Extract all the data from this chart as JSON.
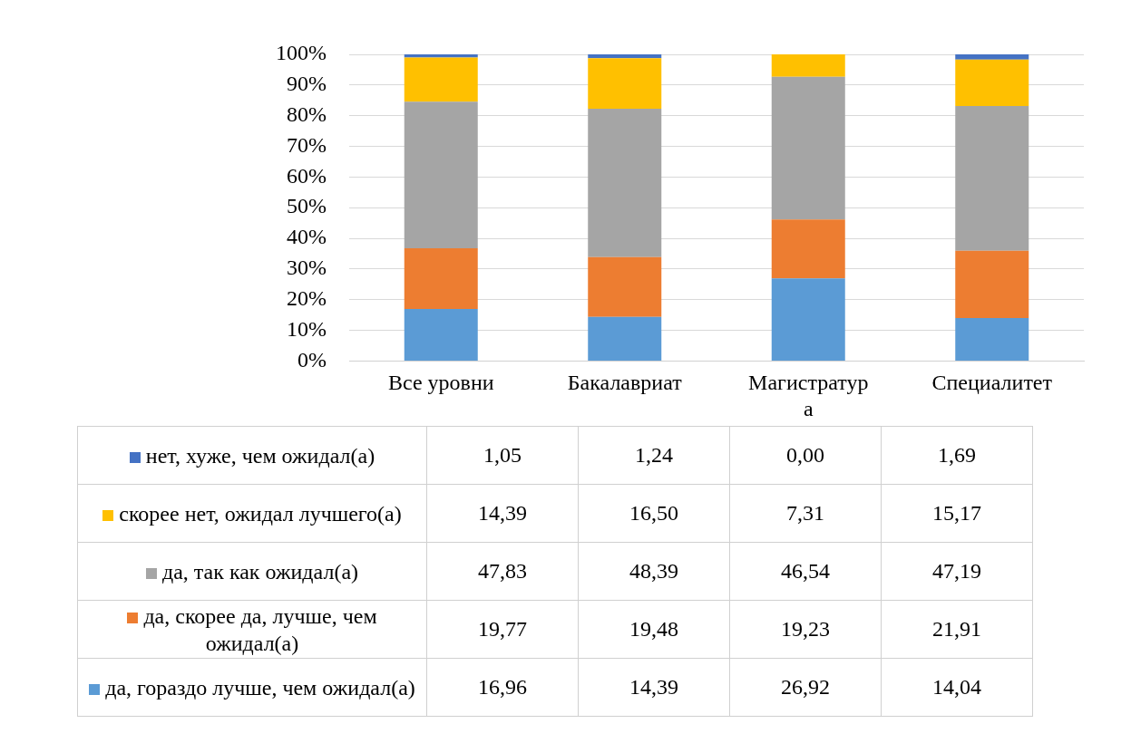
{
  "chart_data": {
    "type": "bar",
    "stacked": true,
    "categories": [
      "Все уровни",
      "Бакалавриат",
      "Магистратура",
      "Специалитет"
    ],
    "series": [
      {
        "name": "да, гораздо лучше, чем ожидал(а)",
        "color": "#5b9bd5",
        "values": [
          16.96,
          14.39,
          26.92,
          14.04
        ],
        "value_labels": [
          "16,96",
          "14,39",
          "26,92",
          "14,04"
        ]
      },
      {
        "name": "да, скорее да, лучше, чем ожидал(а)",
        "color": "#ed7d31",
        "values": [
          19.77,
          19.48,
          19.23,
          21.91
        ],
        "value_labels": [
          "19,77",
          "19,48",
          "19,23",
          "21,91"
        ]
      },
      {
        "name": "да, так как ожидал(а)",
        "color": "#a5a5a5",
        "values": [
          47.83,
          48.39,
          46.54,
          47.19
        ],
        "value_labels": [
          "47,83",
          "48,39",
          "46,54",
          "47,19"
        ]
      },
      {
        "name": "скорее нет, ожидал лучшего(а)",
        "color": "#ffc000",
        "values": [
          14.39,
          16.5,
          7.31,
          15.17
        ],
        "value_labels": [
          "14,39",
          "16,50",
          "7,31",
          "15,17"
        ]
      },
      {
        "name": "нет, хуже, чем ожидал(а)",
        "color": "#4472c4",
        "values": [
          1.05,
          1.24,
          0.0,
          1.69
        ],
        "value_labels": [
          "1,05",
          "1,24",
          "0,00",
          "1,69"
        ]
      }
    ],
    "ylim": [
      0,
      100
    ],
    "yticks": [
      {
        "value": 0,
        "label": "0%"
      },
      {
        "value": 10,
        "label": "10%"
      },
      {
        "value": 20,
        "label": "20%"
      },
      {
        "value": 30,
        "label": "30%"
      },
      {
        "value": 40,
        "label": "40%"
      },
      {
        "value": 50,
        "label": "50%"
      },
      {
        "value": 60,
        "label": "60%"
      },
      {
        "value": 70,
        "label": "70%"
      },
      {
        "value": 80,
        "label": "80%"
      },
      {
        "value": 90,
        "label": "90%"
      },
      {
        "value": 100,
        "label": "100%"
      }
    ],
    "grid": "y",
    "legend": "bottom"
  }
}
